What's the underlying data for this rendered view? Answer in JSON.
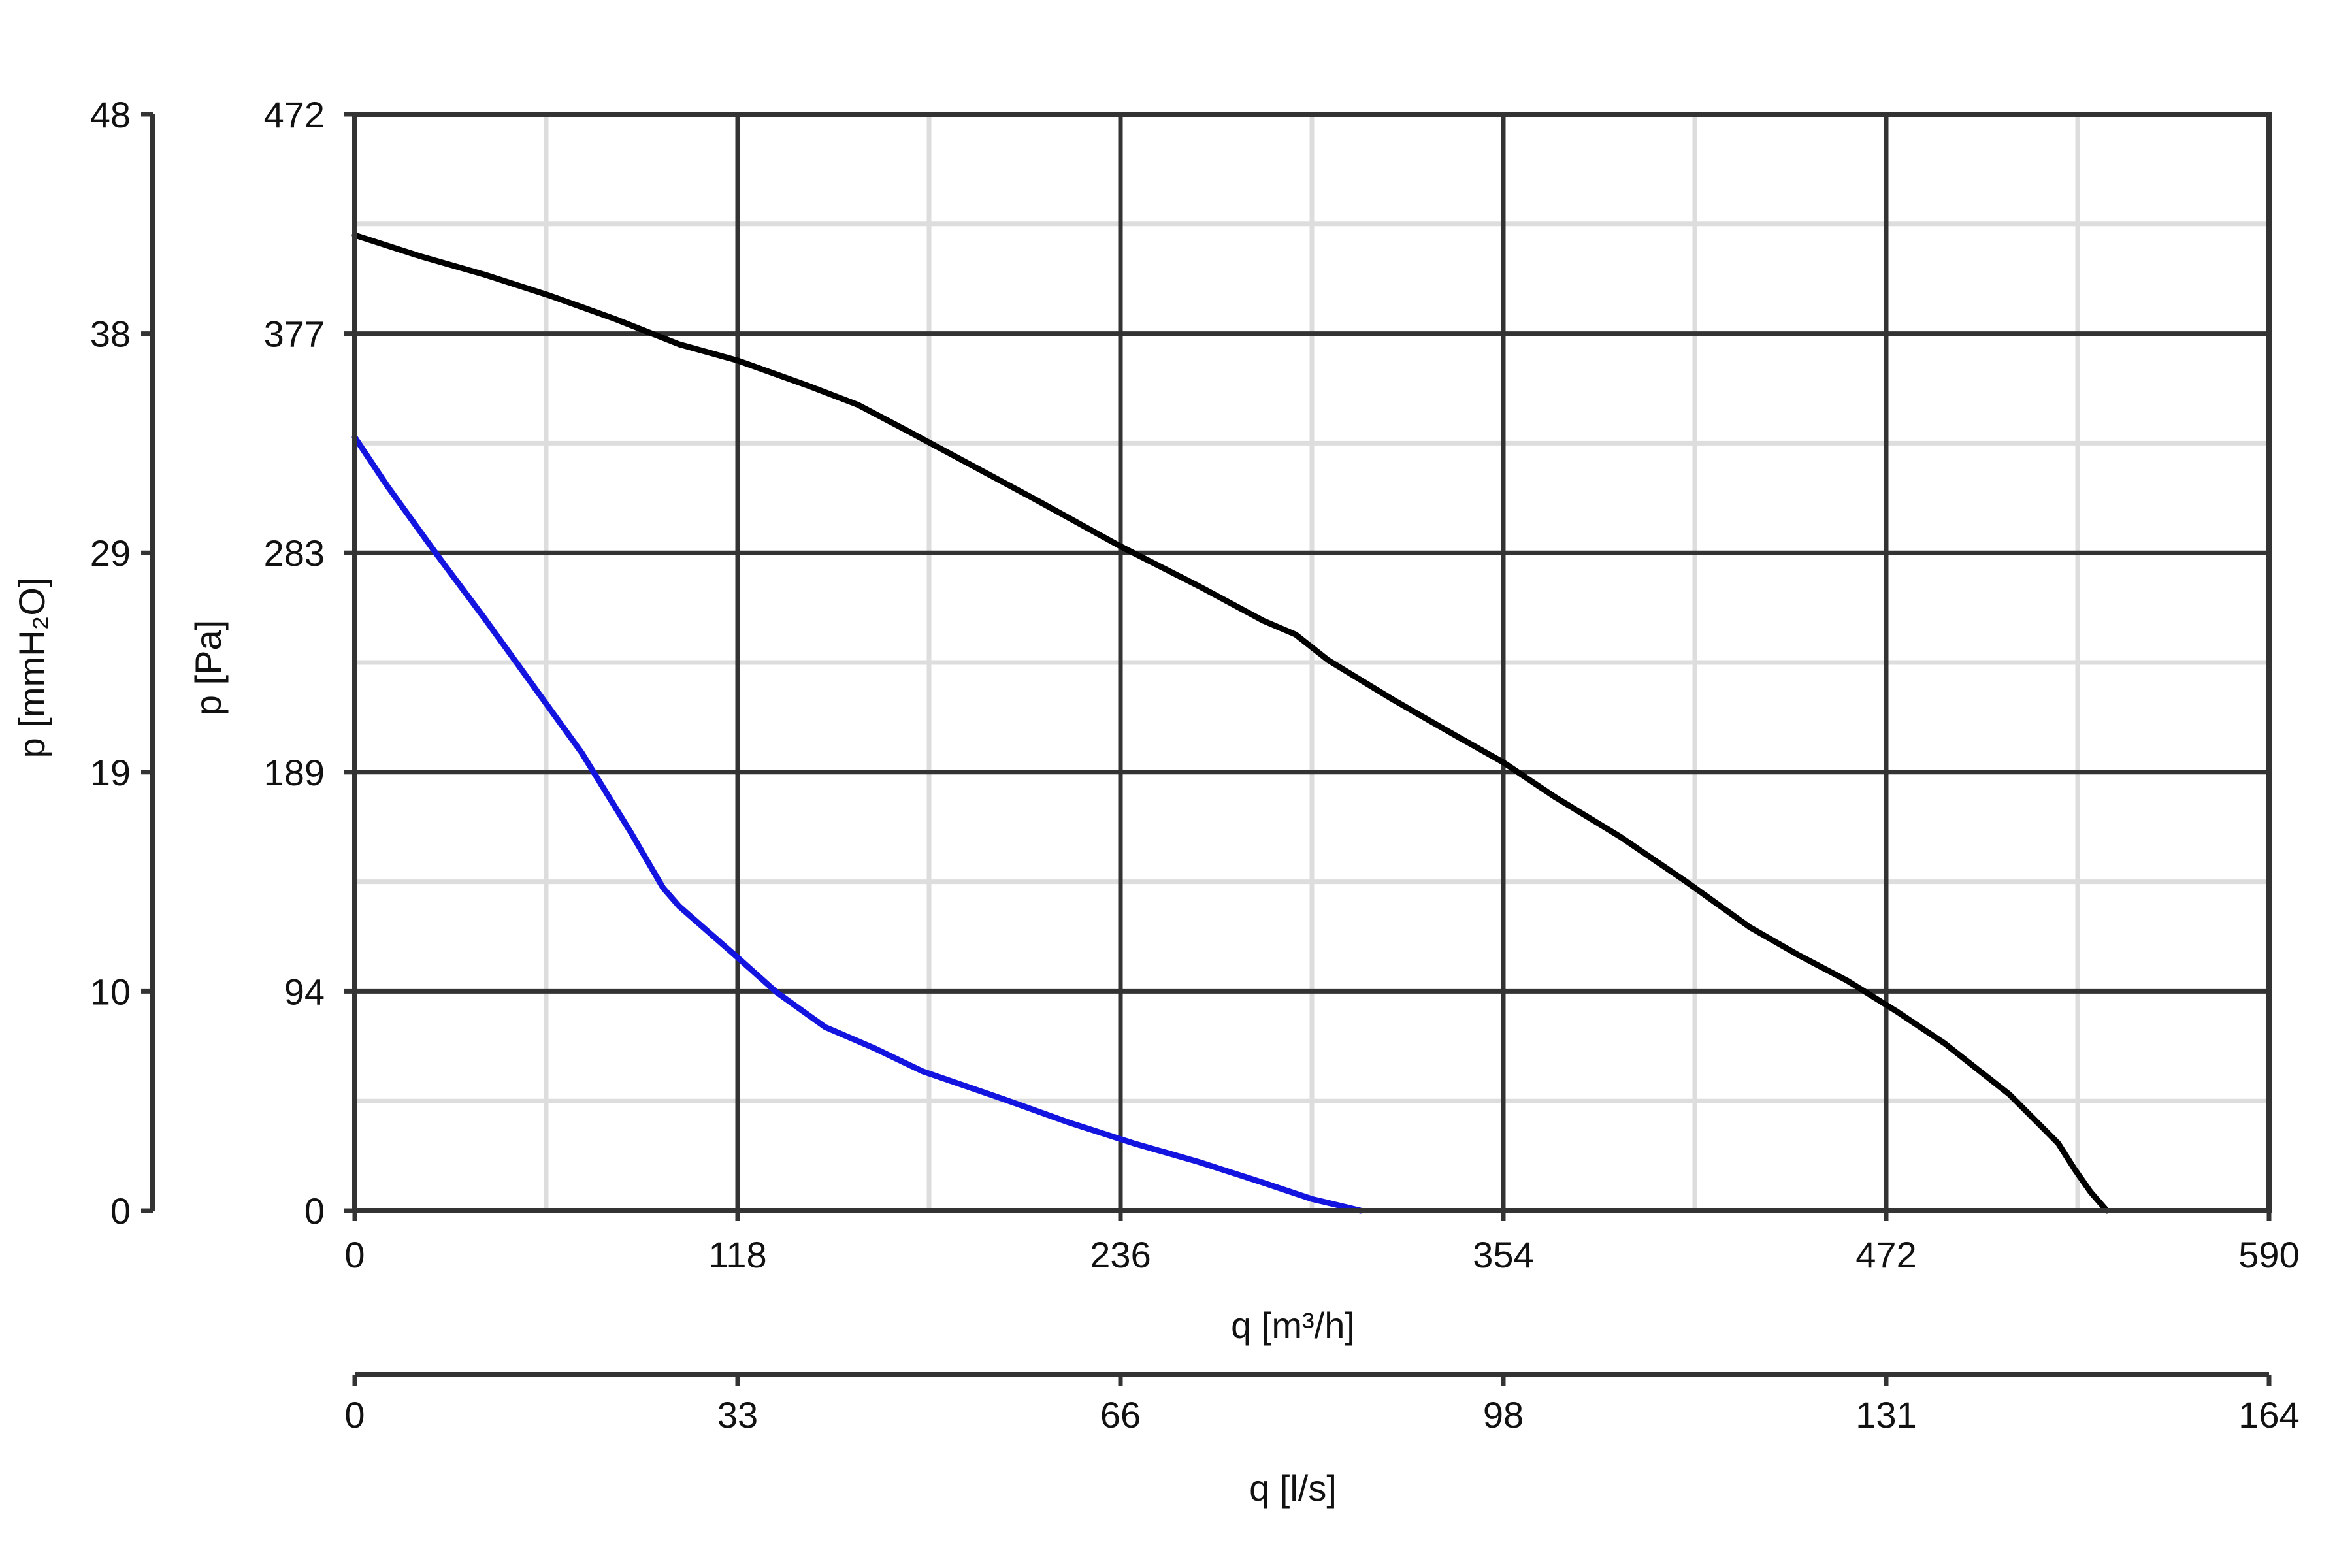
{
  "colors": {
    "axis": "#333333",
    "major_grid": "#333333",
    "minor_grid": "#dddddd",
    "series": [
      "#000000",
      "#1414e0"
    ]
  },
  "chart_data": {
    "type": "line",
    "title": "",
    "xlabel": "q [m³/h]",
    "ylabel": "p [Pa]",
    "xlim": [
      0,
      590
    ],
    "ylim": [
      0,
      472
    ],
    "x_ticks": [
      "0",
      "118",
      "236",
      "354",
      "472",
      "590"
    ],
    "y_ticks": [
      "0",
      "94",
      "189",
      "283",
      "377",
      "472"
    ],
    "grid": true,
    "secondary_x_axis": {
      "label": "q [l/s]",
      "ticks": [
        "0",
        "33",
        "66",
        "98",
        "131",
        "164"
      ]
    },
    "secondary_y_axis": {
      "label": "p [mmH₂O]",
      "ticks": [
        "0",
        "10",
        "19",
        "29",
        "38",
        "48"
      ]
    },
    "series": [
      {
        "color": "#000000",
        "points": [
          [
            0,
            420
          ],
          [
            20,
            411
          ],
          [
            40,
            403
          ],
          [
            60,
            394
          ],
          [
            80,
            384
          ],
          [
            100,
            373
          ],
          [
            118,
            366
          ],
          [
            140,
            355
          ],
          [
            155,
            347
          ],
          [
            170,
            336
          ],
          [
            190,
            321
          ],
          [
            210,
            306
          ],
          [
            236,
            286
          ],
          [
            260,
            269
          ],
          [
            280,
            254
          ],
          [
            290,
            248
          ],
          [
            300,
            237
          ],
          [
            320,
            220
          ],
          [
            340,
            204
          ],
          [
            354,
            193
          ],
          [
            370,
            178
          ],
          [
            390,
            161
          ],
          [
            410,
            142
          ],
          [
            430,
            122
          ],
          [
            445,
            110
          ],
          [
            460,
            99
          ],
          [
            475,
            86
          ],
          [
            490,
            72
          ],
          [
            500,
            61
          ],
          [
            510,
            50
          ],
          [
            520,
            36
          ],
          [
            525,
            29
          ],
          [
            530,
            18
          ],
          [
            535,
            8
          ],
          [
            540,
            0
          ]
        ]
      },
      {
        "color": "#1414e0",
        "points": [
          [
            0,
            333
          ],
          [
            10,
            312
          ],
          [
            25,
            283
          ],
          [
            40,
            255
          ],
          [
            55,
            226
          ],
          [
            70,
            197
          ],
          [
            85,
            163
          ],
          [
            95,
            139
          ],
          [
            100,
            131
          ],
          [
            118,
            109
          ],
          [
            130,
            94
          ],
          [
            145,
            79
          ],
          [
            160,
            70
          ],
          [
            175,
            60
          ],
          [
            200,
            48
          ],
          [
            220,
            38
          ],
          [
            240,
            29
          ],
          [
            260,
            21
          ],
          [
            280,
            12
          ],
          [
            295,
            5
          ],
          [
            310,
            0
          ]
        ]
      }
    ]
  }
}
